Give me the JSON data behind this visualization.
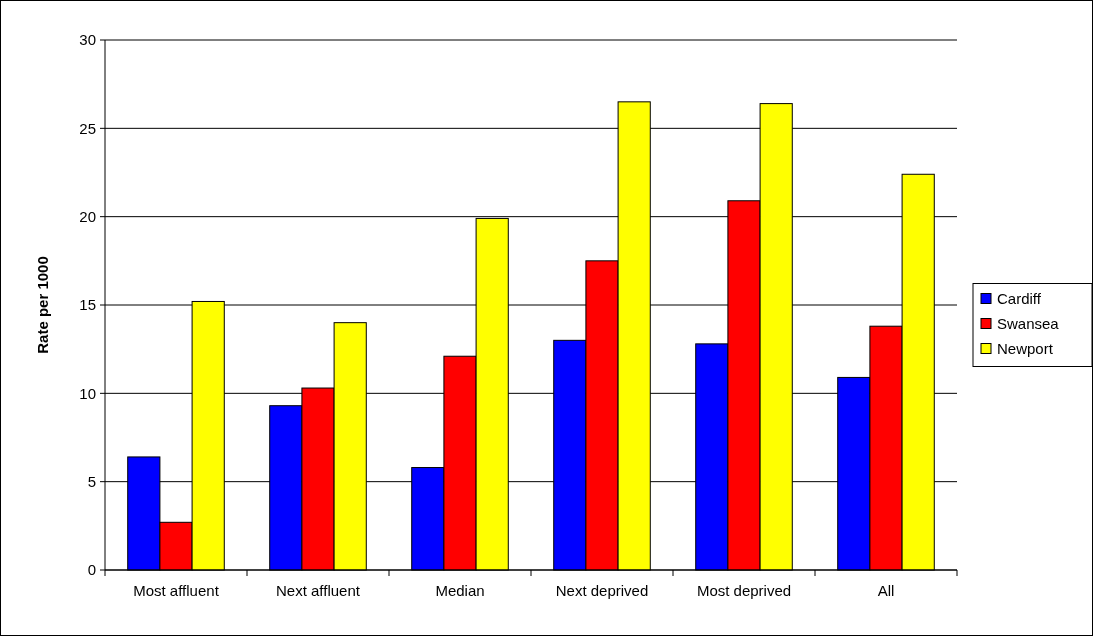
{
  "chart_data": {
    "type": "bar",
    "ylabel": "Rate per 1000",
    "categories": [
      "Most affluent",
      "Next affluent",
      "Median",
      "Next deprived",
      "Most deprived",
      "All"
    ],
    "series": [
      {
        "name": "Cardiff",
        "color": "#0000ff",
        "values": [
          6.4,
          9.3,
          5.8,
          13.0,
          12.8,
          10.9
        ]
      },
      {
        "name": "Swansea",
        "color": "#ff0000",
        "values": [
          2.7,
          10.3,
          12.1,
          17.5,
          20.9,
          13.8
        ]
      },
      {
        "name": "Newport",
        "color": "#ffff00",
        "values": [
          15.2,
          14.0,
          19.9,
          26.5,
          26.4,
          22.4
        ]
      }
    ],
    "ylim": [
      0,
      30
    ],
    "yticks": [
      0,
      5,
      10,
      15,
      20,
      25,
      30
    ],
    "grid": "y",
    "legend": "right"
  }
}
